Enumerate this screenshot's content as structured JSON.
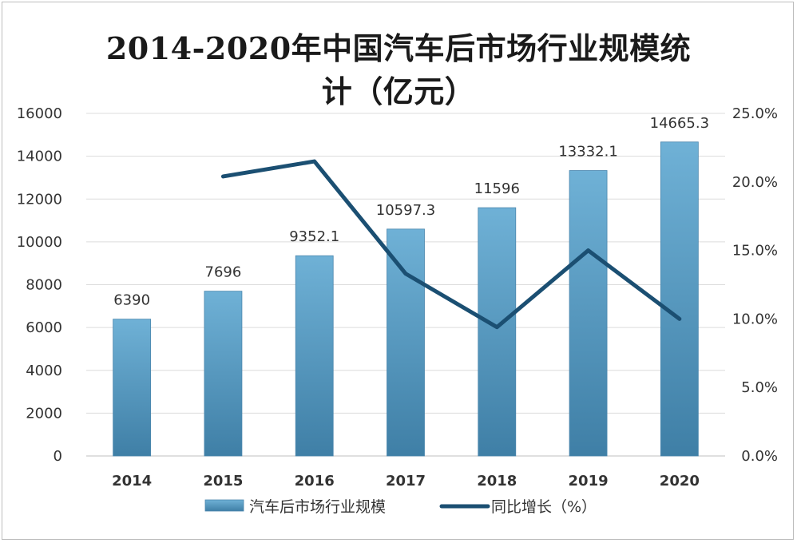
{
  "title_lines": [
    "2014-2020年中国汽车后市场行业规模统",
    "计（亿元）"
  ],
  "chart_data": {
    "type": "bar",
    "categories": [
      "2014",
      "2015",
      "2016",
      "2017",
      "2018",
      "2019",
      "2020"
    ],
    "series": [
      {
        "name": "汽车后市场行业规模",
        "type": "bar",
        "axis": "left",
        "values": [
          6390,
          7696,
          9352.1,
          10597.3,
          11596,
          13332.1,
          14665.3
        ],
        "labels": [
          "6390",
          "7696",
          "9352.1",
          "10597.3",
          "11596",
          "13332.1",
          "14665.3"
        ],
        "color": "#5b9bc4"
      },
      {
        "name": "同比增长（%）",
        "type": "line",
        "axis": "right",
        "values": [
          null,
          20.4,
          21.5,
          13.3,
          9.4,
          15.0,
          10.0
        ],
        "color": "#1b4f72"
      }
    ],
    "left_axis": {
      "min": 0,
      "max": 16000,
      "ticks": [
        "0",
        "2000",
        "4000",
        "6000",
        "8000",
        "10000",
        "12000",
        "14000",
        "16000"
      ]
    },
    "right_axis": {
      "min": 0,
      "max": 25,
      "ticks": [
        "0.0%",
        "5.0%",
        "10.0%",
        "15.0%",
        "20.0%",
        "25.0%"
      ]
    },
    "grid": true,
    "legend_position": "bottom"
  }
}
